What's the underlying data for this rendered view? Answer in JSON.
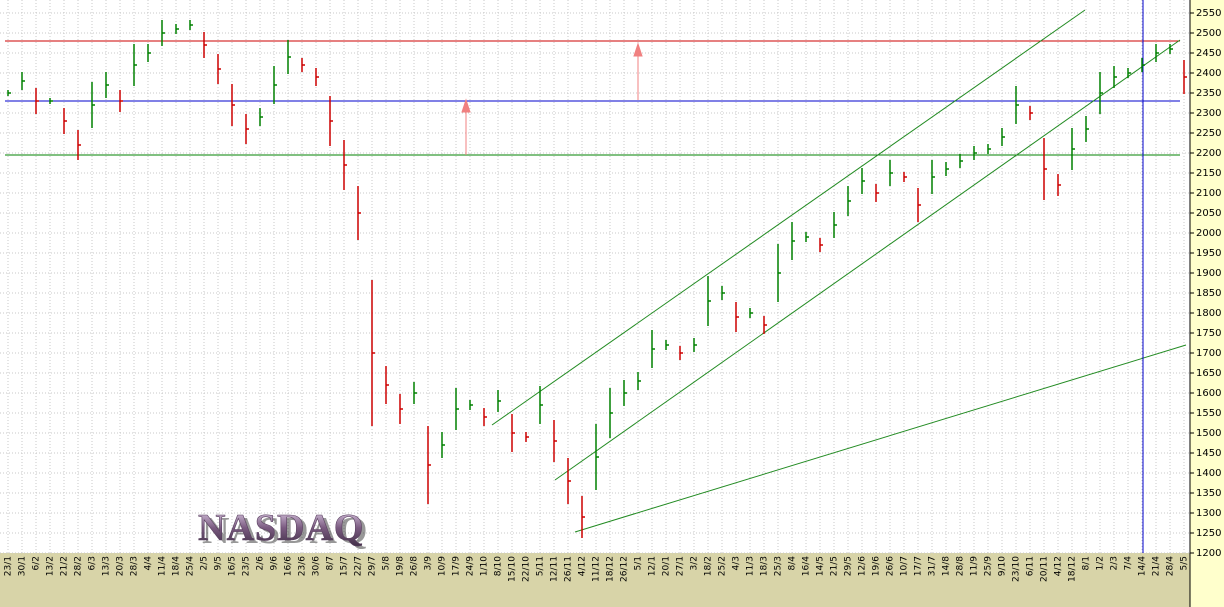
{
  "chart_data": {
    "type": "ohlc",
    "title": "NASDAQ",
    "categories": [
      "23/1",
      "30/1",
      "6/2",
      "13/2",
      "21/2",
      "28/2",
      "6/3",
      "13/3",
      "20/3",
      "28/3",
      "4/4",
      "11/4",
      "18/4",
      "25/4",
      "2/5",
      "9/5",
      "16/5",
      "23/5",
      "2/6",
      "9/6",
      "16/6",
      "23/6",
      "30/6",
      "8/7",
      "15/7",
      "22/7",
      "29/7",
      "5/8",
      "19/8",
      "26/8",
      "3/9",
      "10/9",
      "17/9",
      "24/9",
      "1/10",
      "8/10",
      "15/10",
      "22/10",
      "5/11",
      "12/11",
      "26/11",
      "4/12",
      "11/12",
      "18/12",
      "26/12",
      "5/1",
      "12/1",
      "20/1",
      "27/1",
      "3/2",
      "18/2",
      "25/2",
      "4/3",
      "11/3",
      "18/3",
      "25/3",
      "8/4",
      "16/4",
      "14/5",
      "21/5",
      "29/5",
      "12/6",
      "19/6",
      "26/6",
      "10/7",
      "17/7",
      "31/7",
      "14/8",
      "28/8",
      "11/9",
      "25/9",
      "9/10",
      "23/10",
      "6/11",
      "20/11",
      "4/12",
      "18/12",
      "8/1",
      "1/2",
      "2/3",
      "7/4",
      "14/4",
      "21/4",
      "28/4",
      "5/5"
    ],
    "values": [
      2350,
      2380,
      2330,
      2330,
      2280,
      2220,
      2320,
      2370,
      2330,
      2420,
      2450,
      2500,
      2510,
      2520,
      2470,
      2410,
      2320,
      2260,
      2290,
      2370,
      2440,
      2420,
      2390,
      2280,
      2170,
      2050,
      1700,
      1620,
      1560,
      1600,
      1420,
      1470,
      1560,
      1570,
      1540,
      1580,
      1500,
      1490,
      1570,
      1480,
      1380,
      1290,
      1440,
      1550,
      1600,
      1630,
      1710,
      1720,
      1700,
      1720,
      1830,
      1850,
      1790,
      1800,
      1770,
      1900,
      1980,
      1990,
      1970,
      2020,
      2080,
      2130,
      2100,
      2150,
      2140,
      2070,
      2140,
      2160,
      2180,
      2200,
      2210,
      2240,
      2320,
      2300,
      2160,
      2120,
      2210,
      2260,
      2350,
      2390,
      2400,
      2420,
      2450,
      2460,
      2390
    ],
    "up_color": "#008000",
    "down_color": "#cc0000",
    "ylim": [
      1200,
      2550
    ],
    "yticks": [
      1200,
      1250,
      1300,
      1350,
      1400,
      1450,
      1500,
      1550,
      1600,
      1650,
      1700,
      1750,
      1800,
      1850,
      1900,
      1950,
      2000,
      2050,
      2100,
      2150,
      2200,
      2250,
      2300,
      2350,
      2400,
      2450,
      2500,
      2550
    ],
    "grid": true,
    "reference_lines": [
      {
        "value": 2480,
        "color": "#cc0000"
      },
      {
        "value": 2330,
        "color": "#0000cc"
      },
      {
        "value": 2195,
        "color": "#008000"
      }
    ]
  }
}
